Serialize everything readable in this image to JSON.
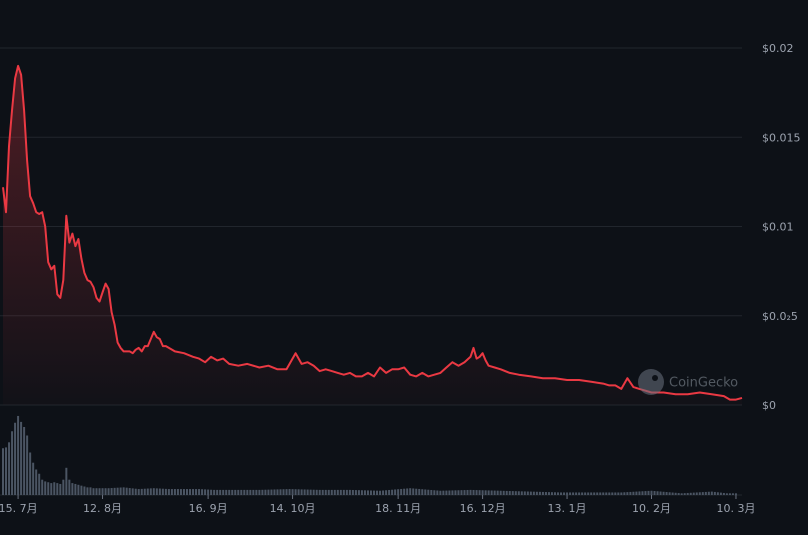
{
  "chart_data": {
    "type": "area",
    "y_tick_labels": [
      "$0.02",
      "$0.015",
      "$0.01",
      "$0.0₂5",
      "$0"
    ],
    "y_tick_values": [
      0.02,
      0.015,
      0.01,
      0.005,
      0
    ],
    "ylim": [
      0,
      0.02
    ],
    "x_tick_labels": [
      "15. 7月",
      "12. 8月",
      "16. 9月",
      "14. 10月",
      "18. 11月",
      "16. 12月",
      "13. 1月",
      "10. 2月",
      "10. 3月"
    ],
    "x_tick_days": [
      10,
      38,
      73,
      101,
      136,
      164,
      192,
      220,
      248
    ],
    "xlim_days": [
      5,
      250
    ],
    "grid": true,
    "line_color": "#ea3943",
    "volume_color": "#4b5563",
    "watermark": "CoinGecko",
    "price_series": {
      "x_days": [
        5,
        6,
        7,
        8,
        9,
        10,
        11,
        12,
        13,
        14,
        15,
        16,
        17,
        18,
        19,
        20,
        21,
        22,
        23,
        24,
        25,
        26,
        27,
        28,
        29,
        30,
        31,
        32,
        33,
        34,
        35,
        36,
        37,
        38,
        39,
        40,
        41,
        42,
        43,
        44,
        45,
        46,
        47,
        48,
        49,
        50,
        51,
        52,
        53,
        54,
        55,
        56,
        57,
        58,
        59,
        62,
        65,
        68,
        70,
        72,
        74,
        76,
        78,
        80,
        83,
        86,
        90,
        93,
        96,
        99,
        102,
        104,
        106,
        108,
        110,
        112,
        114,
        116,
        118,
        120,
        122,
        124,
        126,
        128,
        130,
        132,
        134,
        136,
        138,
        140,
        142,
        144,
        146,
        148,
        150,
        152,
        154,
        156,
        158,
        160,
        161,
        162,
        163,
        164,
        165,
        166,
        168,
        170,
        173,
        176,
        180,
        184,
        188,
        192,
        196,
        200,
        204,
        206,
        208,
        210,
        212,
        214,
        216,
        218,
        220,
        224,
        228,
        232,
        236,
        240,
        244,
        246,
        248,
        250
      ],
      "y": [
        0.0122,
        0.0108,
        0.0145,
        0.0165,
        0.0183,
        0.019,
        0.0185,
        0.0165,
        0.0137,
        0.0117,
        0.0113,
        0.0108,
        0.0107,
        0.0108,
        0.01,
        0.008,
        0.0076,
        0.0078,
        0.0062,
        0.006,
        0.007,
        0.0106,
        0.0091,
        0.0096,
        0.0089,
        0.0093,
        0.0082,
        0.0074,
        0.007,
        0.0069,
        0.0066,
        0.006,
        0.0058,
        0.0063,
        0.0068,
        0.0065,
        0.0052,
        0.0045,
        0.0035,
        0.0032,
        0.003,
        0.003,
        0.003,
        0.0029,
        0.0031,
        0.0032,
        0.003,
        0.0033,
        0.0033,
        0.0037,
        0.0041,
        0.0038,
        0.0037,
        0.0033,
        0.0033,
        0.003,
        0.0029,
        0.0027,
        0.0026,
        0.0024,
        0.0027,
        0.0025,
        0.0026,
        0.0023,
        0.0022,
        0.0023,
        0.0021,
        0.0022,
        0.002,
        0.002,
        0.0029,
        0.0023,
        0.0024,
        0.0022,
        0.0019,
        0.002,
        0.0019,
        0.0018,
        0.0017,
        0.0018,
        0.0016,
        0.0016,
        0.0018,
        0.0016,
        0.0021,
        0.0018,
        0.002,
        0.002,
        0.0021,
        0.0017,
        0.0016,
        0.0018,
        0.0016,
        0.0017,
        0.0018,
        0.0021,
        0.0024,
        0.0022,
        0.0024,
        0.0027,
        0.0032,
        0.0026,
        0.0027,
        0.0029,
        0.0025,
        0.0022,
        0.0021,
        0.002,
        0.0018,
        0.0017,
        0.0016,
        0.0015,
        0.0015,
        0.0014,
        0.0014,
        0.0013,
        0.0012,
        0.0011,
        0.0011,
        0.0009,
        0.0015,
        0.001,
        0.0009,
        0.0008,
        0.0007,
        0.0007,
        0.0006,
        0.0006,
        0.0007,
        0.0006,
        0.0005,
        0.0003,
        0.0003,
        0.0004
      ]
    },
    "volume_series": {
      "x_days": [
        5,
        6,
        7,
        8,
        9,
        10,
        11,
        12,
        13,
        14,
        15,
        16,
        17,
        18,
        19,
        20,
        21,
        22,
        23,
        24,
        25,
        26,
        27,
        28,
        29,
        30,
        31,
        32,
        33,
        34,
        35,
        40,
        45,
        50,
        55,
        60,
        70,
        75,
        80,
        90,
        100,
        110,
        120,
        130,
        140,
        150,
        160,
        170,
        180,
        190,
        200,
        210,
        220,
        230,
        235,
        240,
        245,
        248
      ],
      "values": [
        0.55,
        0.56,
        0.62,
        0.75,
        0.85,
        0.93,
        0.86,
        0.8,
        0.7,
        0.5,
        0.38,
        0.3,
        0.25,
        0.18,
        0.16,
        0.15,
        0.14,
        0.15,
        0.14,
        0.13,
        0.18,
        0.32,
        0.18,
        0.14,
        0.13,
        0.12,
        0.11,
        0.1,
        0.09,
        0.09,
        0.08,
        0.08,
        0.09,
        0.07,
        0.08,
        0.07,
        0.07,
        0.06,
        0.06,
        0.06,
        0.07,
        0.06,
        0.06,
        0.05,
        0.08,
        0.05,
        0.06,
        0.05,
        0.04,
        0.03,
        0.03,
        0.03,
        0.05,
        0.02,
        0.03,
        0.04,
        0.02,
        0.02
      ]
    }
  }
}
